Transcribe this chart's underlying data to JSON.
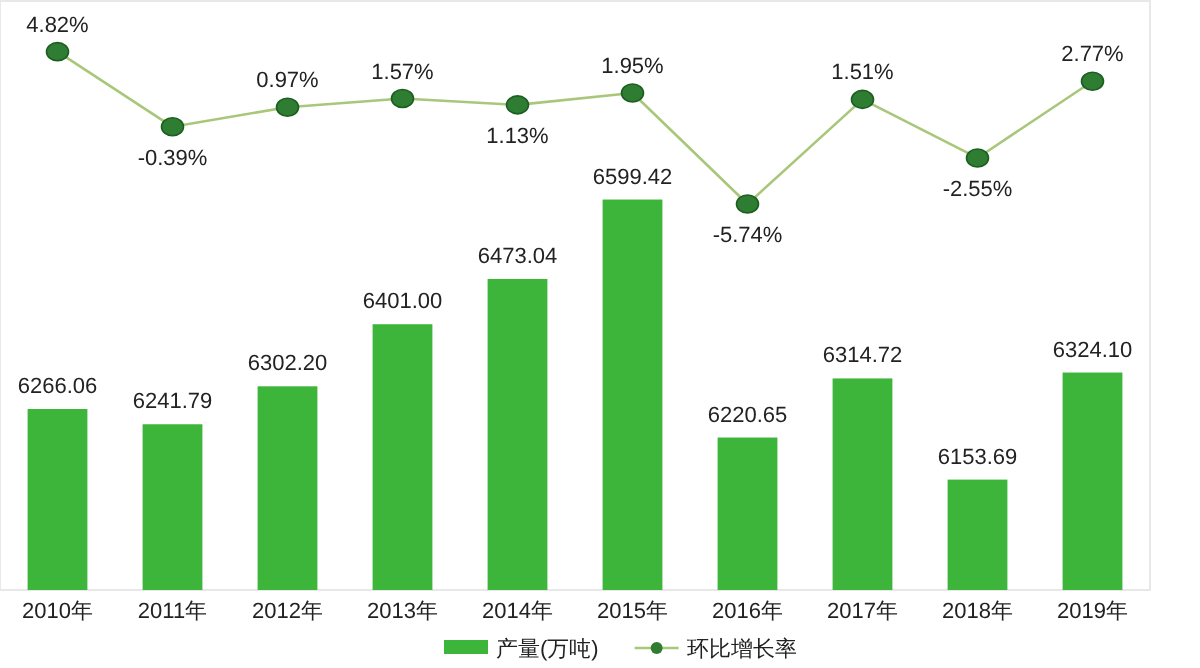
{
  "chart_data": {
    "type": "bar",
    "categories": [
      "2010年",
      "2011年",
      "2012年",
      "2013年",
      "2014年",
      "2015年",
      "2016年",
      "2017年",
      "2018年",
      "2019年"
    ],
    "ylim": [
      5978,
      6917
    ],
    "y2lim": [
      -32.5,
      8.4
    ],
    "tick_labels": "x",
    "legend": "bottom",
    "series": [
      {
        "name": "产量(万吨)",
        "color": "#3db53a",
        "values": [
          6266.06,
          6241.79,
          6302.2,
          6401.0,
          6473.04,
          6599.42,
          6220.65,
          6314.72,
          6153.69,
          6324.1
        ],
        "value_labels": [
          "6266.06",
          "6241.79",
          "6302.20",
          "6401.00",
          "6473.04",
          "6599.42",
          "6220.65",
          "6314.72",
          "6153.69",
          "6324.10"
        ]
      },
      {
        "name": "环比增长率",
        "type": "line",
        "axis": "y2",
        "color": "#a9c77a",
        "marker": "circle",
        "values": [
          4.82,
          -0.39,
          0.97,
          1.57,
          1.13,
          1.95,
          -5.74,
          1.51,
          -2.55,
          2.77
        ],
        "value_labels": [
          "4.82%",
          "-0.39%",
          "0.97%",
          "1.57%",
          "1.13%",
          "1.95%",
          "-5.74%",
          "1.51%",
          "-2.55%",
          "2.77%"
        ]
      }
    ]
  }
}
